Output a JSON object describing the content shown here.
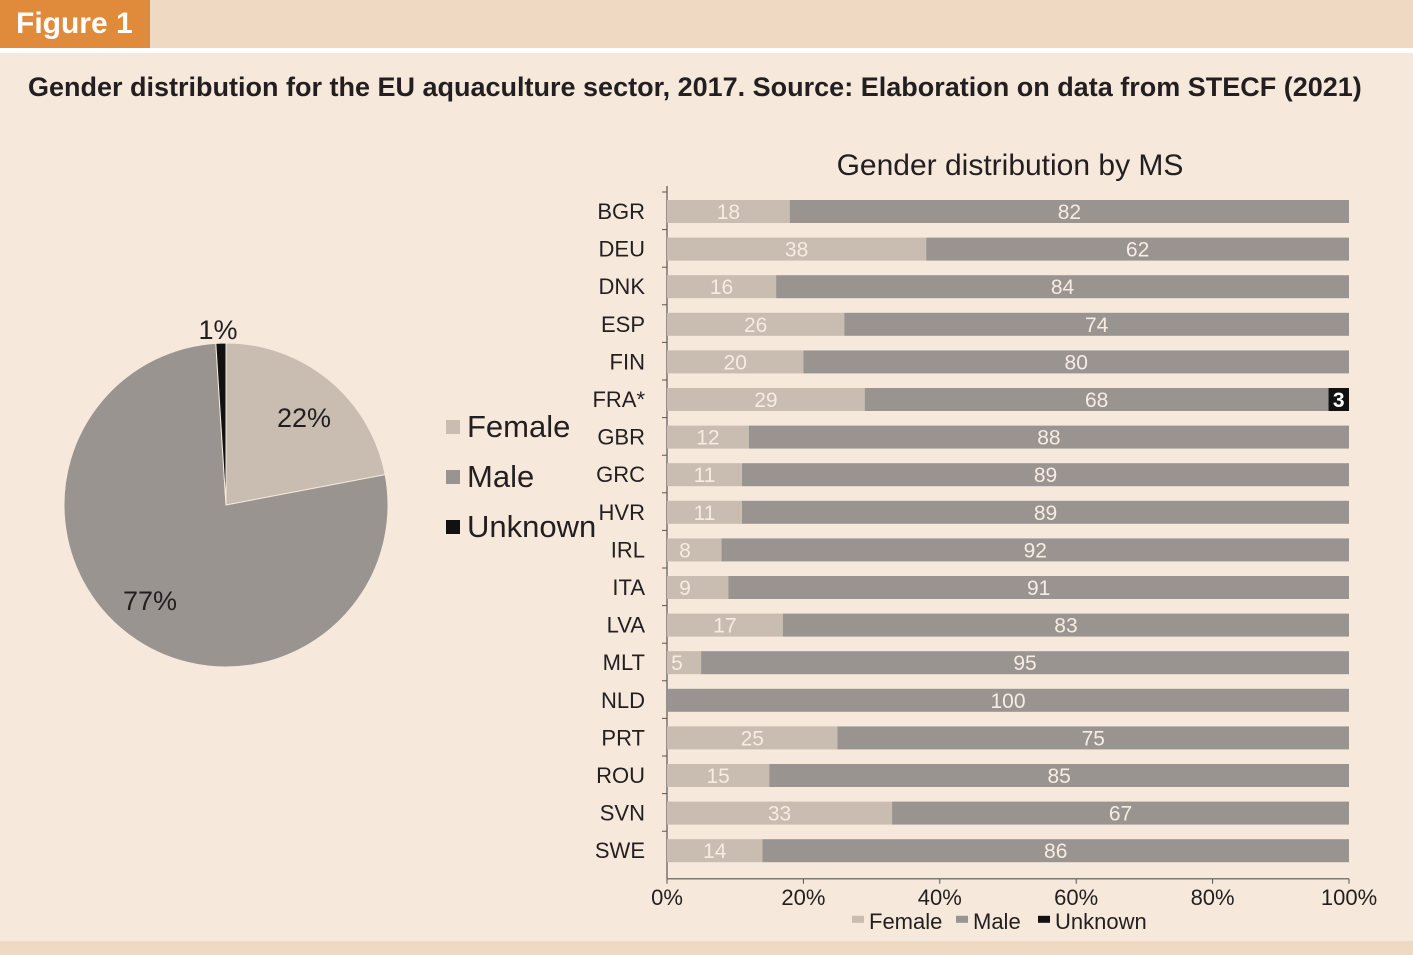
{
  "figure_label": "Figure 1",
  "title": "Gender distribution for the EU aquaculture sector, 2017. Source: Elaboration on data from STECF (2021)",
  "colors": {
    "female": "#c9bcb0",
    "male": "#9a9491",
    "unknown": "#111111",
    "accent": "#e08a3c"
  },
  "chart_data": [
    {
      "type": "pie",
      "title": "",
      "slices": [
        {
          "label": "Female",
          "value": 22,
          "display": "22%"
        },
        {
          "label": "Male",
          "value": 77,
          "display": "77%"
        },
        {
          "label": "Unknown",
          "value": 1,
          "display": "1%"
        }
      ],
      "legend": [
        "Female",
        "Male",
        "Unknown"
      ],
      "legend_position": "right"
    },
    {
      "type": "bar",
      "orientation": "horizontal",
      "stacked": "percent",
      "title": "Gender distribution by MS",
      "categories": [
        "BGR",
        "DEU",
        "DNK",
        "ESP",
        "FIN",
        "FRA*",
        "GBR",
        "GRC",
        "HVR",
        "IRL",
        "ITA",
        "LVA",
        "MLT",
        "NLD",
        "PRT",
        "ROU",
        "SVN",
        "SWE"
      ],
      "series": [
        {
          "name": "Female",
          "values": [
            18,
            38,
            16,
            26,
            20,
            29,
            12,
            11,
            11,
            8,
            9,
            17,
            5,
            0,
            25,
            15,
            33,
            14
          ]
        },
        {
          "name": "Male",
          "values": [
            82,
            62,
            84,
            74,
            80,
            68,
            88,
            89,
            89,
            92,
            91,
            83,
            95,
            100,
            75,
            85,
            67,
            86
          ]
        },
        {
          "name": "Unknown",
          "values": [
            0,
            0,
            0,
            0,
            0,
            3,
            0,
            0,
            0,
            0,
            0,
            0,
            0,
            0,
            0,
            0,
            0,
            0
          ]
        }
      ],
      "xlim": [
        0,
        100
      ],
      "xticks": [
        "0%",
        "20%",
        "40%",
        "60%",
        "80%",
        "100%"
      ],
      "legend": [
        "Female",
        "Male",
        "Unknown"
      ],
      "legend_position": "bottom"
    }
  ]
}
